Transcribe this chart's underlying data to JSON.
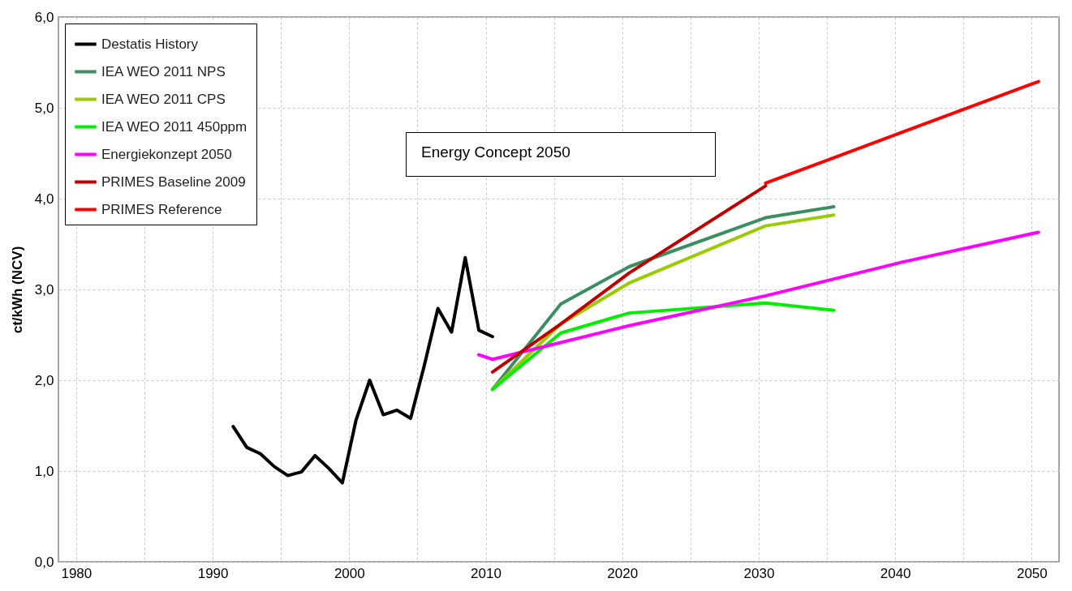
{
  "chart_data": {
    "type": "line",
    "ylabel": "ct/kWh (NCV)",
    "xlim": [
      1978.7,
      2052
    ],
    "ylim": [
      0,
      6
    ],
    "xticks": [
      1980,
      {
        "value": 1985,
        "label": null
      },
      1990,
      {
        "value": 1995,
        "label": null
      },
      2000,
      {
        "value": 2005,
        "label": null
      },
      2010,
      {
        "value": 2015,
        "label": null
      },
      2020,
      {
        "value": 2025,
        "label": null
      },
      2030,
      {
        "value": 2035,
        "label": null
      },
      2040,
      {
        "value": 2045,
        "label": null
      },
      2050
    ],
    "yticks": [
      {
        "value": 0,
        "label": "0,0"
      },
      {
        "value": 1,
        "label": "1,0"
      },
      {
        "value": 2,
        "label": "2,0"
      },
      {
        "value": 3,
        "label": "3,0"
      },
      {
        "value": 4,
        "label": "4,0"
      },
      {
        "value": 5,
        "label": "5,0"
      },
      {
        "value": 6,
        "label": "6,0"
      }
    ],
    "grid": true,
    "legend": "top left",
    "marker": "none",
    "line_style": "solid",
    "annotations": [
      "Energy Concept 2050"
    ],
    "series": [
      {
        "name": "Destatis History",
        "color": "#000000",
        "x": [
          1991.5,
          1992.5,
          1993.5,
          1994.5,
          1995.5,
          1996.5,
          1997.5,
          1998.5,
          1999.5,
          2000.5,
          2001.5,
          2002.5,
          2003.5,
          2004.5,
          2005.5,
          2006.5,
          2007.5,
          2008.5,
          2009.5,
          2010.5
        ],
        "values": [
          1.49,
          1.26,
          1.19,
          1.05,
          0.95,
          0.99,
          1.17,
          1.03,
          0.87,
          1.56,
          2.0,
          1.62,
          1.67,
          1.58,
          2.16,
          2.79,
          2.53,
          3.35,
          2.55,
          2.48
        ]
      },
      {
        "name": "IEA WEO 2011 NPS",
        "color": "#3a8f62",
        "x": [
          2010.5,
          2015.5,
          2020.5,
          2030.5,
          2035.5
        ],
        "values": [
          1.9,
          2.84,
          3.25,
          3.79,
          3.91
        ]
      },
      {
        "name": "IEA WEO 2011 CPS",
        "color": "#99cc00",
        "x": [
          2010.5,
          2015.5,
          2020.5,
          2030.5,
          2035.5
        ],
        "values": [
          1.9,
          2.62,
          3.07,
          3.7,
          3.82
        ]
      },
      {
        "name": "IEA WEO 2011 450ppm",
        "color": "#00ee00",
        "x": [
          2010.5,
          2015.5,
          2020.5,
          2030.5,
          2035.5
        ],
        "values": [
          1.9,
          2.52,
          2.74,
          2.85,
          2.77
        ]
      },
      {
        "name": "Energiekonzept 2050",
        "color": "#ff00ff",
        "x": [
          2009.5,
          2010.5,
          2020.5,
          2030.5,
          2040.5,
          2050.5
        ],
        "values": [
          2.28,
          2.23,
          2.6,
          2.93,
          3.3,
          3.63
        ]
      },
      {
        "name": "PRIMES Baseline 2009",
        "color": "#c00000",
        "x": [
          2010.5,
          2015.5,
          2020.5,
          2030.5
        ],
        "values": [
          2.09,
          2.62,
          3.18,
          4.14
        ]
      },
      {
        "name": "PRIMES Reference",
        "color": "#ff0000",
        "x": [
          2030.5,
          2040.5,
          2050.5
        ],
        "values": [
          4.17,
          4.73,
          5.29
        ]
      }
    ]
  }
}
